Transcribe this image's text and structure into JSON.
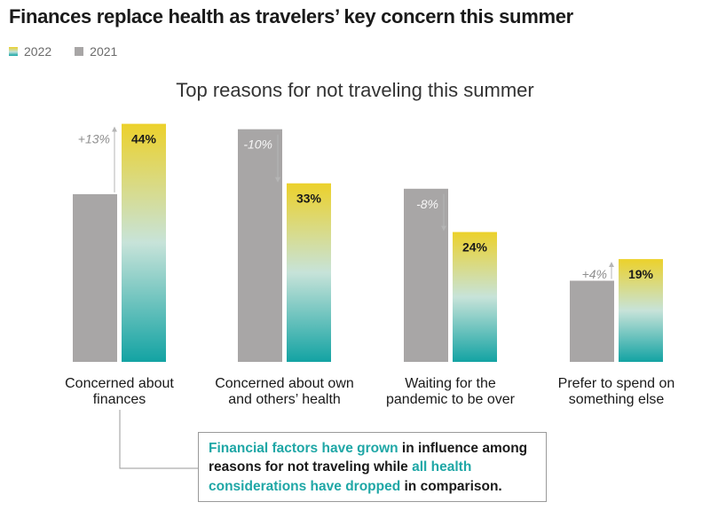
{
  "title": "Finances replace health as travelers’ key concern this summer",
  "legend": {
    "items": [
      {
        "label": "2022"
      },
      {
        "label": "2021",
        "color": "#a8a6a6"
      }
    ]
  },
  "colors": {
    "bar_2021": "#a8a6a6",
    "bar_2022_top": "#ecd12b",
    "bar_2022_mid": "#bfe1dc",
    "bar_2022_bottom": "#13a3a3",
    "change_text": "#8f8f8f",
    "highlight": "#1fa7a6"
  },
  "chart_data": {
    "type": "bar",
    "title": "Top reasons for not traveling this summer",
    "categories": [
      "Concerned about finances",
      "Concerned about own and others’ health",
      "Waiting for the pandemic to be over",
      "Prefer to spend on something else"
    ],
    "category_lines": [
      [
        "Concerned about",
        "finances"
      ],
      [
        "Concerned about own",
        "and others’ health"
      ],
      [
        "Waiting for the",
        "pandemic to be over"
      ],
      [
        "Prefer to spend on",
        "something else"
      ]
    ],
    "series": [
      {
        "name": "2021",
        "values": [
          31,
          43,
          32,
          15
        ]
      },
      {
        "name": "2022",
        "values": [
          44,
          33,
          24,
          19
        ]
      }
    ],
    "data_labels_2022": [
      "44%",
      "33%",
      "24%",
      "19%"
    ],
    "change_labels": [
      "+13%",
      "-10%",
      "-8%",
      "+4%"
    ],
    "change_direction": [
      "up",
      "down",
      "down",
      "up"
    ],
    "ylim": [
      0,
      45
    ],
    "grid": false,
    "legend_position": "top-left"
  },
  "callout": {
    "segments": [
      {
        "text": "Financial factors have grown",
        "highlight": true
      },
      {
        "text": " in influence among reasons for not traveling while ",
        "highlight": false
      },
      {
        "text": "all health considerations have dropped",
        "highlight": true
      },
      {
        "text": " in comparison.",
        "highlight": false
      }
    ]
  }
}
